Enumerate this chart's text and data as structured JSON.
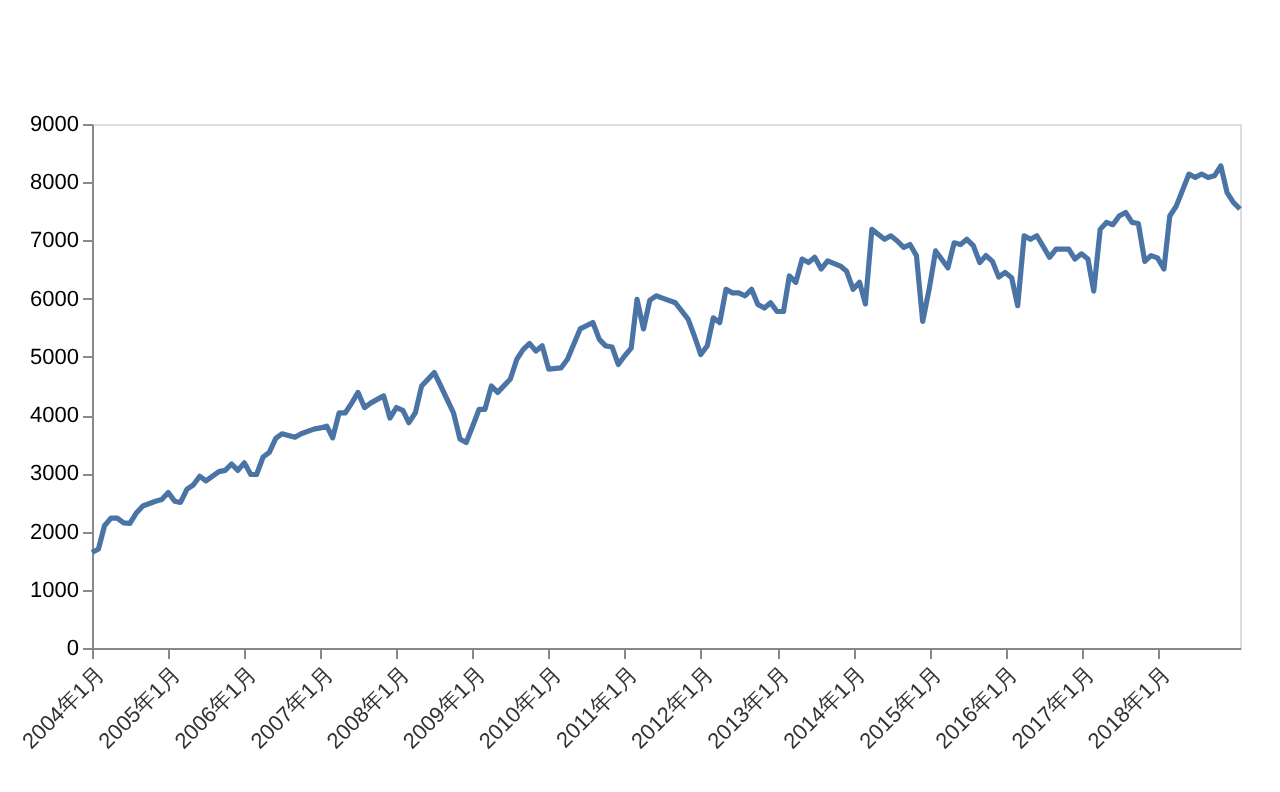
{
  "chart_data": {
    "type": "line",
    "x": [
      "2004-01",
      "2004-02",
      "2004-03",
      "2004-04",
      "2004-05",
      "2004-06",
      "2004-07",
      "2004-08",
      "2004-09",
      "2004-11",
      "2004-12",
      "2005-01",
      "2005-02",
      "2005-03",
      "2005-04",
      "2005-05",
      "2005-06",
      "2005-07",
      "2005-09",
      "2005-10",
      "2005-11",
      "2005-12",
      "2006-01",
      "2006-02",
      "2006-03",
      "2006-04",
      "2006-05",
      "2006-06",
      "2006-07",
      "2006-09",
      "2006-10",
      "2006-12",
      "2007-01",
      "2007-02",
      "2007-03",
      "2007-04",
      "2007-05",
      "2007-06",
      "2007-07",
      "2007-08",
      "2007-09",
      "2007-11",
      "2007-12",
      "2008-01",
      "2008-02",
      "2008-03",
      "2008-04",
      "2008-05",
      "2008-07",
      "2008-08",
      "2008-10",
      "2008-11",
      "2008-12",
      "2009-01",
      "2009-02",
      "2009-03",
      "2009-04",
      "2009-05",
      "2009-07",
      "2009-08",
      "2009-09",
      "2009-10",
      "2009-11",
      "2009-12",
      "2010-01",
      "2010-03",
      "2010-04",
      "2010-06",
      "2010-08",
      "2010-09",
      "2010-10",
      "2010-11",
      "2010-12",
      "2011-01",
      "2011-02",
      "2011-03",
      "2011-04",
      "2011-05",
      "2011-06",
      "2011-07",
      "2011-09",
      "2011-11",
      "2011-12",
      "2012-01",
      "2012-02",
      "2012-03",
      "2012-04",
      "2012-05",
      "2012-06",
      "2012-07",
      "2012-08",
      "2012-09",
      "2012-10",
      "2012-11",
      "2012-12",
      "2013-01",
      "2013-02",
      "2013-03",
      "2013-04",
      "2013-05",
      "2013-06",
      "2013-07",
      "2013-08",
      "2013-09",
      "2013-11",
      "2013-12",
      "2014-01",
      "2014-02",
      "2014-03",
      "2014-04",
      "2014-06",
      "2014-07",
      "2014-08",
      "2014-09",
      "2014-10",
      "2014-11",
      "2014-12",
      "2015-01",
      "2015-02",
      "2015-04",
      "2015-05",
      "2015-06",
      "2015-07",
      "2015-08",
      "2015-09",
      "2015-10",
      "2015-11",
      "2015-12",
      "2016-01",
      "2016-02",
      "2016-03",
      "2016-04",
      "2016-05",
      "2016-06",
      "2016-08",
      "2016-09",
      "2016-11",
      "2016-12",
      "2017-01",
      "2017-02",
      "2017-03",
      "2017-04",
      "2017-05",
      "2017-06",
      "2017-07",
      "2017-08",
      "2017-09",
      "2017-10",
      "2017-11",
      "2017-12",
      "2018-01",
      "2018-02",
      "2018-03",
      "2018-04",
      "2018-06",
      "2018-07",
      "2018-08",
      "2018-09",
      "2018-10",
      "2018-11",
      "2018-12",
      "2019-01",
      "2019-02"
    ],
    "series": [
      {
        "color": "#4a74a6",
        "values": [
          1640,
          1700,
          2100,
          2230,
          2230,
          2150,
          2140,
          2320,
          2440,
          2520,
          2550,
          2670,
          2520,
          2500,
          2730,
          2800,
          2950,
          2870,
          3030,
          3050,
          3160,
          3050,
          3180,
          2980,
          2980,
          3280,
          3360,
          3600,
          3680,
          3620,
          3680,
          3760,
          3780,
          3810,
          3610,
          4040,
          4040,
          4210,
          4390,
          4130,
          4210,
          4330,
          3950,
          4130,
          4080,
          3870,
          4040,
          4500,
          4730,
          4500,
          4040,
          3590,
          3530,
          3810,
          4100,
          4100,
          4500,
          4390,
          4620,
          4960,
          5130,
          5230,
          5100,
          5190,
          4790,
          4810,
          4960,
          5480,
          5590,
          5300,
          5190,
          5170,
          4870,
          5020,
          5150,
          5990,
          5480,
          5970,
          6050,
          6010,
          5930,
          5650,
          5360,
          5040,
          5190,
          5670,
          5590,
          6160,
          6100,
          6100,
          6050,
          6160,
          5900,
          5840,
          5930,
          5780,
          5780,
          6390,
          6280,
          6680,
          6620,
          6710,
          6510,
          6650,
          6560,
          6470,
          6160,
          6280,
          5910,
          7190,
          7020,
          7080,
          6990,
          6880,
          6930,
          6740,
          5610,
          6160,
          6820,
          6530,
          6960,
          6930,
          7020,
          6910,
          6620,
          6740,
          6640,
          6370,
          6450,
          6360,
          5880,
          7080,
          7020,
          7080,
          6710,
          6850,
          6850,
          6680,
          6770,
          6680,
          6130,
          7190,
          7310,
          7270,
          7420,
          7480,
          7310,
          7290,
          6640,
          6740,
          6700,
          6510,
          7420,
          7590,
          8140,
          8080,
          8140,
          8080,
          8110,
          8280,
          7820,
          7650,
          7540
        ]
      }
    ],
    "xlim": [
      "2004-01",
      "2019-02"
    ],
    "xticks": [
      {
        "value": "2004-01",
        "label": "2004年1月"
      },
      {
        "value": "2005-01",
        "label": "2005年1月"
      },
      {
        "value": "2006-01",
        "label": "2006年1月"
      },
      {
        "value": "2007-01",
        "label": "2007年1月"
      },
      {
        "value": "2008-01",
        "label": "2008年1月"
      },
      {
        "value": "2009-01",
        "label": "2009年1月"
      },
      {
        "value": "2010-01",
        "label": "2010年1月"
      },
      {
        "value": "2011-01",
        "label": "2011年1月"
      },
      {
        "value": "2012-01",
        "label": "2012年1月"
      },
      {
        "value": "2013-01",
        "label": "2013年1月"
      },
      {
        "value": "2014-01",
        "label": "2014年1月"
      },
      {
        "value": "2015-01",
        "label": "2015年1月"
      },
      {
        "value": "2016-01",
        "label": "2016年1月"
      },
      {
        "value": "2017-01",
        "label": "2017年1月"
      },
      {
        "value": "2018-01",
        "label": "2018年1月"
      }
    ],
    "ylim": [
      0,
      9000
    ],
    "yticks": [
      0,
      1000,
      2000,
      3000,
      4000,
      5000,
      6000,
      7000,
      8000,
      9000
    ],
    "grid": false,
    "marker": "none",
    "line_style": "solid"
  }
}
